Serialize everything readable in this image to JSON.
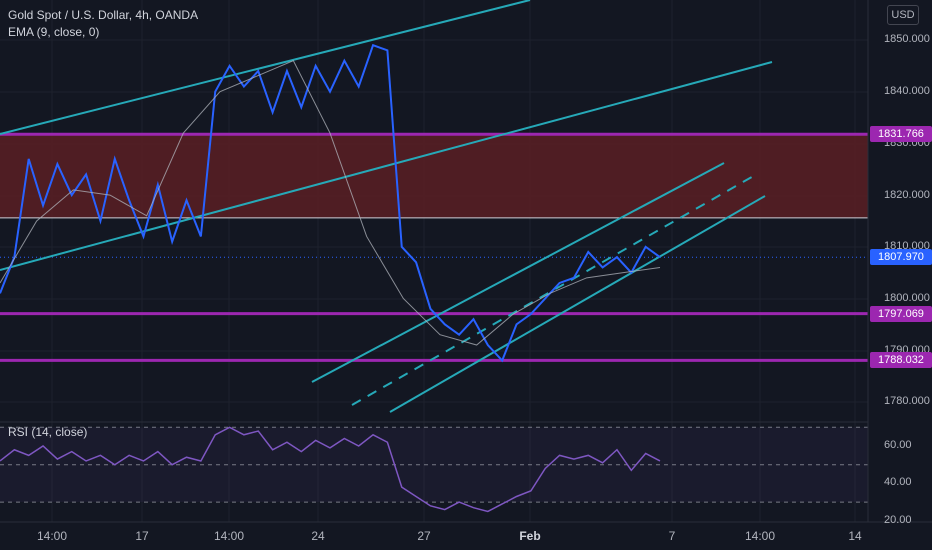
{
  "header": {
    "symbol_line": "Gold Spot / U.S. Dollar, 4h, OANDA",
    "indicator_line": "EMA (9, close, 0)",
    "currency_badge": "USD"
  },
  "rsi_legend": "RSI (14, close)",
  "price_axis": {
    "ticks": [
      "1850.000",
      "1840.000",
      "1830.000",
      "1820.000",
      "1810.000",
      "1800.000",
      "1790.000",
      "1780.000"
    ],
    "tags": [
      {
        "label": "1831.766",
        "color": "#9c27b0"
      },
      {
        "label": "1807.970",
        "color": "#2962ff"
      },
      {
        "label": "1797.069",
        "color": "#9c27b0"
      },
      {
        "label": "1788.032",
        "color": "#9c27b0"
      }
    ]
  },
  "rsi_axis": {
    "ticks": [
      "60.00",
      "40.00",
      "20.00"
    ]
  },
  "time_axis": {
    "ticks": [
      {
        "label": "14:00",
        "bold": false
      },
      {
        "label": "17",
        "bold": false
      },
      {
        "label": "14:00",
        "bold": false
      },
      {
        "label": "24",
        "bold": false
      },
      {
        "label": "27",
        "bold": false
      },
      {
        "label": "Feb",
        "bold": true
      },
      {
        "label": "7",
        "bold": false
      },
      {
        "label": "14:00",
        "bold": false
      },
      {
        "label": "14",
        "bold": false
      }
    ]
  },
  "colors": {
    "background": "#131722",
    "price_line": "#2962ff",
    "ema_line": "#b2b5be",
    "channel": "#26a9b8",
    "support": "#9c27b0",
    "zone_fill": "#5b1f23",
    "rsi_line": "#7e57c2"
  },
  "chart_data": {
    "type": "line",
    "title": "Gold Spot / U.S. Dollar, 4h, OANDA",
    "series": [
      {
        "name": "Gold Spot / U.S. Dollar",
        "x": [
          "Jan 12",
          "Jan 13",
          "Jan 13",
          "Jan 14",
          "Jan 14",
          "Jan 15",
          "Jan 15",
          "Jan 16",
          "Jan 17",
          "Jan 17",
          "Jan 18",
          "Jan 18",
          "Jan 19",
          "Jan 19",
          "Jan 20",
          "Jan 20",
          "Jan 21",
          "Jan 21",
          "Jan 22",
          "Jan 22",
          "Jan 23",
          "Jan 23",
          "Jan 24",
          "Jan 24",
          "Jan 25",
          "Jan 25",
          "Jan 26",
          "Jan 26",
          "Jan 27",
          "Jan 27",
          "Jan 28",
          "Jan 28",
          "Jan 29",
          "Jan 29",
          "Jan 30",
          "Jan 30",
          "Jan 31",
          "Jan 31",
          "Feb 1",
          "Feb 1",
          "Feb 2",
          "Feb 2",
          "Feb 3",
          "Feb 3",
          "Feb 4",
          "Feb 4",
          "Feb 5"
        ],
        "values": [
          1801,
          1808,
          1827,
          1818,
          1826,
          1820,
          1824,
          1815,
          1827,
          1819,
          1812,
          1822,
          1811,
          1819,
          1812,
          1840,
          1845,
          1841,
          1844,
          1836,
          1844,
          1837,
          1845,
          1840,
          1846,
          1841,
          1849,
          1848,
          1810,
          1807,
          1798,
          1795,
          1793,
          1796,
          1791,
          1788,
          1795,
          1797,
          1800,
          1803,
          1804,
          1809,
          1806,
          1808,
          1805,
          1810,
          1808
        ]
      },
      {
        "name": "EMA (9, close, 0)",
        "x": [
          "Jan 12",
          "Jan 14",
          "Jan 16",
          "Jan 18",
          "Jan 20",
          "Jan 21",
          "Jan 23",
          "Jan 25",
          "Jan 26",
          "Jan 27",
          "Jan 28",
          "Jan 29",
          "Jan 30",
          "Jan 31",
          "Feb 1",
          "Feb 2",
          "Feb 3",
          "Feb 4",
          "Feb 5"
        ],
        "values": [
          1803,
          1815,
          1821,
          1820,
          1816,
          1832,
          1840,
          1843,
          1846,
          1832,
          1812,
          1800,
          1793,
          1791,
          1797,
          1801,
          1804,
          1805,
          1806
        ]
      }
    ],
    "rsi": {
      "name": "RSI (14, close)",
      "values": [
        52,
        58,
        55,
        60,
        53,
        57,
        52,
        55,
        50,
        55,
        52,
        57,
        50,
        54,
        52,
        66,
        70,
        66,
        68,
        58,
        62,
        57,
        63,
        59,
        64,
        60,
        66,
        62,
        38,
        33,
        28,
        26,
        30,
        27,
        25,
        29,
        33,
        36,
        48,
        55,
        53,
        55,
        51,
        58,
        47,
        56,
        52
      ],
      "ylim": [
        20,
        70
      ],
      "levels": [
        70,
        50,
        30
      ]
    },
    "horizontal_levels": [
      1831.766,
      1797.069,
      1788.032
    ],
    "last_price": 1807.97,
    "ylim": [
      1776,
      1856
    ],
    "grid": true,
    "xlabel": "",
    "ylabel": ""
  }
}
